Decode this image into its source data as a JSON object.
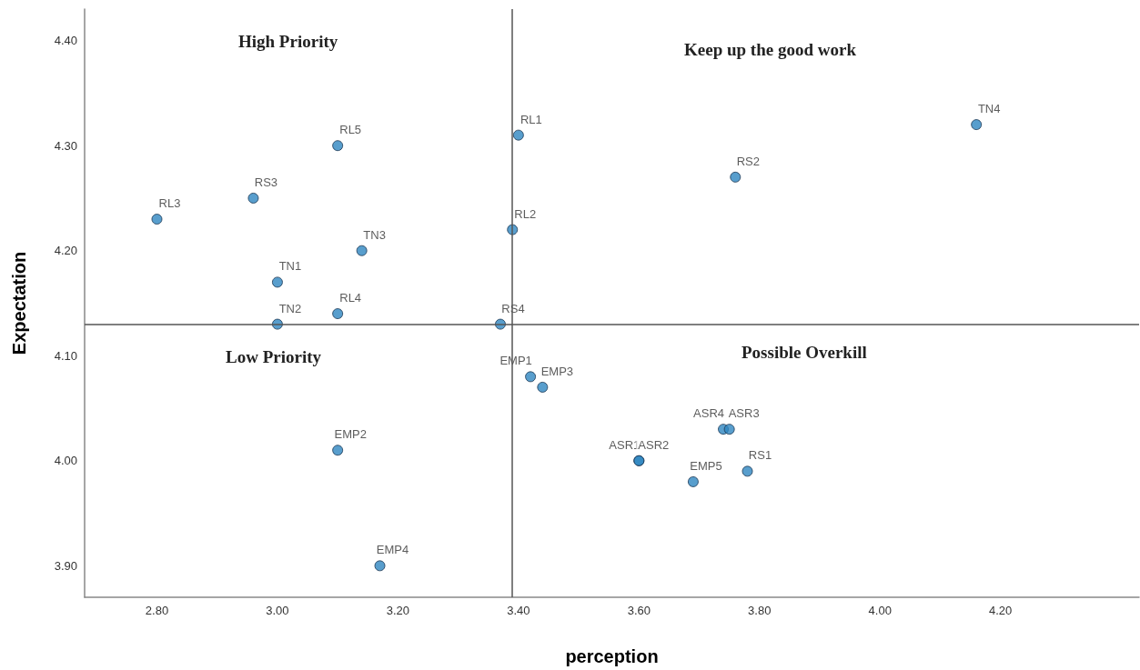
{
  "chart_data": {
    "type": "scatter",
    "xlabel": "perception",
    "ylabel": "Expectation",
    "annotations": [
      "High Priority",
      "Keep up the good work",
      "Low Priority",
      "Possible Overkill"
    ],
    "series": [
      {
        "color": "#2e86c1",
        "x": [
          2.8,
          2.96,
          3.1,
          3.0,
          3.0,
          3.1,
          3.14,
          3.4,
          3.39,
          3.37,
          3.42,
          3.44,
          3.1,
          3.17,
          3.6,
          3.6,
          3.69,
          3.74,
          3.75,
          3.78,
          3.76,
          4.16
        ],
        "values": [
          4.23,
          4.25,
          4.3,
          4.17,
          4.13,
          4.14,
          4.2,
          4.31,
          4.22,
          4.13,
          4.08,
          4.07,
          4.01,
          3.9,
          4.0,
          4.0,
          3.98,
          4.03,
          4.03,
          3.99,
          4.27,
          4.32
        ],
        "value_labels": [
          "RL3",
          "RS3",
          "RL5",
          "TN1",
          "TN2",
          "RL4",
          "TN3",
          "RL1",
          "RL2",
          "RS4",
          "EMP1",
          "EMP3",
          "EMP2",
          "EMP4",
          "ASR1",
          "ASR2",
          "EMP5",
          "ASR4",
          "ASR3",
          "RS1",
          "RS2",
          "TN4"
        ]
      }
    ],
    "xlim": [
      2.68,
      4.43
    ],
    "xticks": [
      {
        "value": 2.8,
        "label": "2.80"
      },
      {
        "value": 3,
        "label": "3.00"
      },
      {
        "value": 3.2,
        "label": "3.20"
      },
      {
        "value": 3.4,
        "label": "3.40"
      },
      {
        "value": 3.6,
        "label": "3.60"
      },
      {
        "value": 3.8,
        "label": "3.80"
      },
      {
        "value": 4,
        "label": "4.00"
      },
      {
        "value": 4.2,
        "label": "4.20"
      }
    ],
    "ylim": [
      3.87,
      4.43
    ],
    "yticks": [
      {
        "value": 3.9,
        "label": "3.90"
      },
      {
        "value": 4,
        "label": "4.00"
      },
      {
        "value": 4.1,
        "label": "4.10"
      },
      {
        "value": 4.2,
        "label": "4.20"
      },
      {
        "value": 4.3,
        "label": "4.30"
      },
      {
        "value": 4.4,
        "label": "4.40"
      }
    ],
    "ref_lines": [
      {
        "axis": "x",
        "value": 3.39,
        "color": "#555555"
      },
      {
        "axis": "y",
        "value": 4.13,
        "color": "#555555"
      }
    ],
    "marker": "circle",
    "grid": false
  }
}
